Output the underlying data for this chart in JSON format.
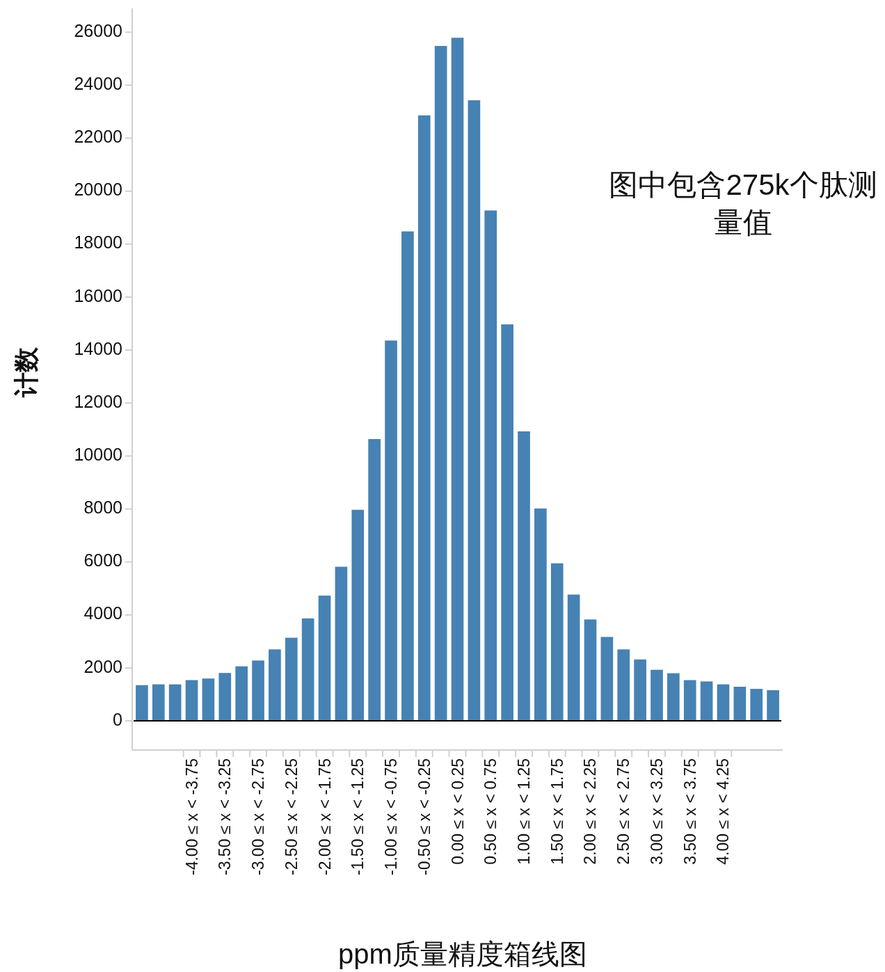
{
  "chart_data": {
    "type": "bar",
    "xlabel": "ppm质量精度箱线图",
    "ylabel": "计数",
    "annotations": [
      "图中包含275k个肽测量值"
    ],
    "categories": [
      null,
      null,
      null,
      "-4.00 ≤ x < -3.75",
      null,
      "-3.50 ≤ x < -3.25",
      null,
      "-3.00 ≤ x < -2.75",
      null,
      "-2.50 ≤ x < -2.25",
      null,
      "-2.00 ≤ x < -1.75",
      null,
      "-1.50 ≤ x < -1.25",
      null,
      "-1.00 ≤ x < -0.75",
      null,
      "-0.50 ≤ x < -0.25",
      null,
      "0.00 ≤ x < 0.25",
      null,
      "0.50 ≤ x < 0.75",
      null,
      "1.00 ≤ x < 1.25",
      null,
      "1.50 ≤ x < 1.75",
      null,
      "2.00 ≤ x < 2.25",
      null,
      "2.50 ≤ x < 2.75",
      null,
      "3.00 ≤ x < 3.25",
      null,
      "3.50 ≤ x < 3.75",
      null,
      "4.00 ≤ x < 4.25",
      null,
      null,
      null
    ],
    "values": [
      1350,
      1380,
      1380,
      1540,
      1600,
      1810,
      2060,
      2280,
      2700,
      3140,
      3870,
      4730,
      5820,
      7970,
      10640,
      14360,
      18480,
      22860,
      25480,
      25790,
      23430,
      19270,
      14970,
      10930,
      8020,
      5950,
      4770,
      3830,
      3170,
      2700,
      2320,
      1930,
      1800,
      1540,
      1490,
      1380,
      1290,
      1210,
      1160
    ],
    "color": "#4682b4",
    "ylim": [
      -1100,
      26900
    ],
    "yticks": [
      0,
      2000,
      4000,
      6000,
      8000,
      10000,
      12000,
      14000,
      16000,
      18000,
      20000,
      22000,
      24000,
      26000
    ],
    "ref_lines": [
      {
        "axis": "y",
        "value": 0,
        "color": "#000000"
      }
    ]
  }
}
